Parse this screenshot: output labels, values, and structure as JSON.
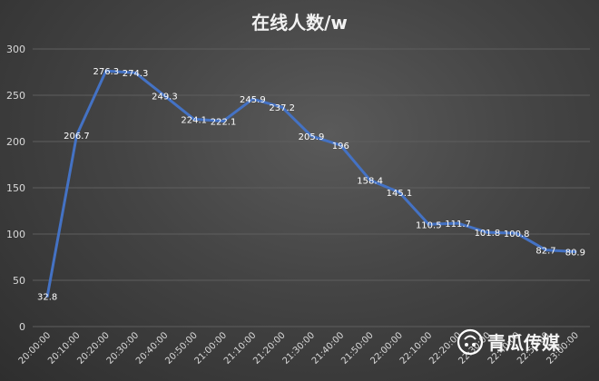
{
  "chart_data": {
    "type": "line",
    "title": "在线人数/w",
    "xlabel": "",
    "ylabel": "",
    "ylim": [
      0,
      300
    ],
    "yticks": [
      0,
      50,
      100,
      150,
      200,
      250,
      300
    ],
    "grid": true,
    "categories": [
      "20:00:00",
      "20:10:00",
      "20:20:00",
      "20:30:00",
      "20:40:00",
      "20:50:00",
      "21:00:00",
      "21:10:00",
      "21:20:00",
      "21:30:00",
      "21:40:00",
      "21:50:00",
      "22:00:00",
      "22:10:00",
      "22:20:00",
      "22:30:00",
      "22:40:00",
      "22:50:00",
      "23:00:00"
    ],
    "series": [
      {
        "values": [
          32.8,
          206.7,
          276.3,
          274.3,
          249.3,
          224.1,
          222.1,
          245.9,
          237.2,
          205.9,
          196,
          158.4,
          145.1,
          110.5,
          111.7,
          101.8,
          100.8,
          82.7,
          80.9
        ],
        "labels": [
          "32.8",
          "206.7",
          "276.3",
          "274.3",
          "249.3",
          "224.1",
          "222.1",
          "245.9",
          "237.2",
          "205.9",
          "196",
          "158.4",
          "145.1",
          "110.5",
          "111.7",
          "101.8",
          "100.8",
          "82.7",
          "80.9"
        ],
        "color": "#4472c4"
      }
    ]
  },
  "watermark": {
    "text": "青瓜传媒",
    "icon": "melon-logo-icon"
  }
}
